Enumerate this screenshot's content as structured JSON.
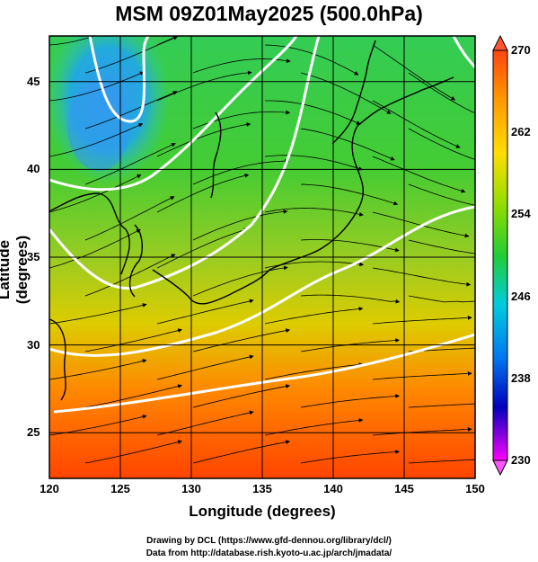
{
  "title": "MSM 09Z01May2025 (500.0hPa)",
  "x_axis": {
    "label": "Longitude (degrees)",
    "ticks": [
      "120",
      "125",
      "130",
      "135",
      "140",
      "145",
      "150"
    ]
  },
  "y_axis": {
    "label": "Latitude  (degrees)",
    "ticks": [
      "25",
      "30",
      "35",
      "40",
      "45"
    ]
  },
  "colorbar": {
    "ticks": [
      "230",
      "238",
      "246",
      "254",
      "262",
      "270"
    ]
  },
  "credits": {
    "line1": "Drawing by DCL (https://www.gfd-dennou.org/library/dcl/)",
    "line2": "Data from http://database.rish.kyoto-u.ac.jp/arch/jmadata/"
  },
  "map": {
    "lon_range": [
      120,
      150
    ],
    "lat_range": [
      22.4,
      47.6
    ],
    "field": "temperature (K) at 500.0hPa with wind streamlines",
    "color_scale": [
      "#ff00ff",
      "#0000cc",
      "#0088ff",
      "#00ddcc",
      "#33cc33",
      "#99dd00",
      "#ffcc00",
      "#ff6600",
      "#ff3300"
    ],
    "white_contours": "isotherm lines"
  }
}
